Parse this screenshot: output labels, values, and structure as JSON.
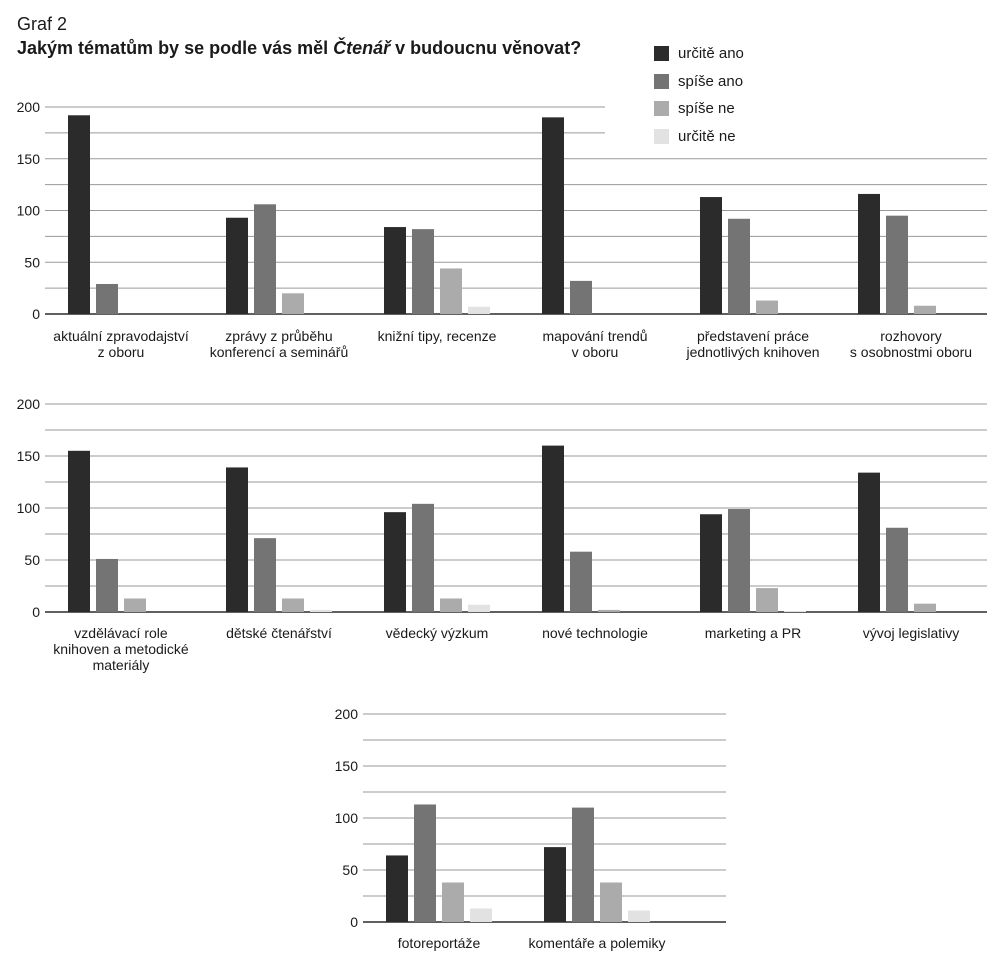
{
  "header": {
    "label": "Graf 2",
    "title_before": "Jakým tématům by se podle vás měl ",
    "title_em": "Čtenář",
    "title_after": " v budoucnu věnovat?"
  },
  "legend": [
    {
      "name": "určitě ano",
      "color": "#2b2b2b"
    },
    {
      "name": "spíše ano",
      "color": "#747474"
    },
    {
      "name": "spíše ne",
      "color": "#ababab"
    },
    {
      "name": "určitě ne",
      "color": "#e2e2e2"
    }
  ],
  "chart_data": [
    {
      "type": "bar",
      "title": "Jakým tématům by se podle vás měl Čtenář v budoucnu věnovat?",
      "ylim": [
        0,
        200
      ],
      "yticks": [
        0,
        50,
        100,
        150,
        200
      ],
      "grid": true,
      "legend_position": "top-right",
      "categories": [
        [
          "aktuální zpravodajství",
          "z oboru"
        ],
        [
          "zprávy z průběhu",
          "konferencí a seminářů"
        ],
        [
          "knižní tipy, recenze"
        ],
        [
          "mapování trendů",
          "v oboru"
        ],
        [
          "představení práce",
          "jednotlivých knihoven"
        ],
        [
          "rozhovory",
          "s osobnostmi oboru"
        ]
      ],
      "series": [
        {
          "name": "určitě ano",
          "values": [
            192,
            93,
            84,
            190,
            113,
            116
          ]
        },
        {
          "name": "spíše ano",
          "values": [
            29,
            106,
            82,
            32,
            92,
            95
          ]
        },
        {
          "name": "spíše ne",
          "values": [
            0,
            20,
            44,
            0,
            13,
            8
          ]
        },
        {
          "name": "určitě ne",
          "values": [
            0,
            0,
            7,
            0,
            0,
            0
          ]
        }
      ]
    },
    {
      "type": "bar",
      "ylim": [
        0,
        200
      ],
      "yticks": [
        0,
        50,
        100,
        150,
        200
      ],
      "grid": true,
      "categories": [
        [
          "vzdělávací role",
          "knihoven a metodické",
          "materiály"
        ],
        [
          "dětské čtenářství"
        ],
        [
          "vědecký výzkum"
        ],
        [
          "nové technologie"
        ],
        [
          "marketing a PR"
        ],
        [
          "vývoj legislativy"
        ]
      ],
      "series": [
        {
          "name": "určitě ano",
          "values": [
            155,
            139,
            96,
            160,
            94,
            134
          ]
        },
        {
          "name": "spíše ano",
          "values": [
            51,
            71,
            104,
            58,
            99,
            81
          ]
        },
        {
          "name": "spíše ne",
          "values": [
            13,
            13,
            13,
            2,
            23,
            8
          ]
        },
        {
          "name": "určitě ne",
          "values": [
            0,
            2,
            7,
            0,
            1,
            0
          ]
        }
      ]
    },
    {
      "type": "bar",
      "ylim": [
        0,
        200
      ],
      "yticks": [
        0,
        50,
        100,
        150,
        200
      ],
      "grid": true,
      "categories": [
        [
          "fotoreportáže"
        ],
        [
          "komentáře a polemiky"
        ]
      ],
      "series": [
        {
          "name": "určitě ano",
          "values": [
            64,
            72
          ]
        },
        {
          "name": "spíše ano",
          "values": [
            113,
            110
          ]
        },
        {
          "name": "spíše ne",
          "values": [
            38,
            38
          ]
        },
        {
          "name": "určitě ne",
          "values": [
            13,
            11
          ]
        }
      ]
    }
  ]
}
